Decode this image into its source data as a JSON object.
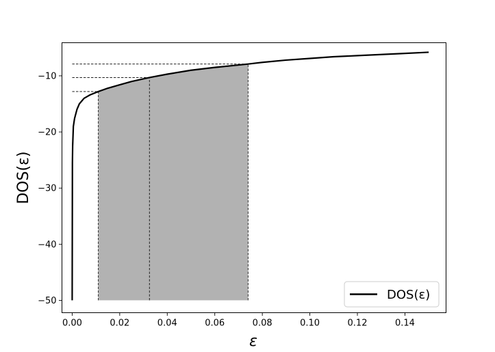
{
  "chart_data": {
    "type": "line",
    "xlabel": "ε",
    "ylabel": "DOS(ε)",
    "xlim": [
      -0.0043,
      0.1573
    ],
    "ylim": [
      -52.2,
      -4.1
    ],
    "xticks": [
      {
        "value": 0.0,
        "label": "0.00"
      },
      {
        "value": 0.02,
        "label": "0.02"
      },
      {
        "value": 0.04,
        "label": "0.04"
      },
      {
        "value": 0.06,
        "label": "0.06"
      },
      {
        "value": 0.08,
        "label": "0.08"
      },
      {
        "value": 0.1,
        "label": "0.10"
      },
      {
        "value": 0.12,
        "label": "0.12"
      },
      {
        "value": 0.14,
        "label": "0.14"
      }
    ],
    "yticks": [
      {
        "value": -50,
        "label": "−50"
      },
      {
        "value": -40,
        "label": "−40"
      },
      {
        "value": -30,
        "label": "−30"
      },
      {
        "value": -20,
        "label": "−20"
      },
      {
        "value": -10,
        "label": "−10"
      }
    ],
    "series": [
      {
        "name": "DOS(ε)",
        "color": "#000000",
        "x": [
          0.0,
          0.0001,
          0.0002,
          0.0005,
          0.001,
          0.002,
          0.003,
          0.005,
          0.0075,
          0.011,
          0.015,
          0.02,
          0.025,
          0.0325,
          0.04,
          0.05,
          0.06,
          0.074,
          0.08,
          0.09,
          0.1,
          0.11,
          0.12,
          0.13,
          0.14,
          0.15
        ],
        "y": [
          -50.0,
          -25.5,
          -22.5,
          -19.0,
          -17.6,
          -16.0,
          -15.0,
          -14.0,
          -13.4,
          -12.8,
          -12.2,
          -11.6,
          -11.0,
          -10.3,
          -9.7,
          -9.0,
          -8.5,
          -7.9,
          -7.6,
          -7.2,
          -6.9,
          -6.6,
          -6.4,
          -6.2,
          -6.0,
          -5.8
        ]
      }
    ],
    "shaded_regions": [
      {
        "x0": 0.011,
        "x1": 0.0325,
        "y_base": -50,
        "color": "#b2b2b2"
      },
      {
        "x0": 0.0325,
        "x1": 0.074,
        "y_base": -50,
        "color": "#b2b2b2"
      }
    ],
    "reference_lines": [
      {
        "x": 0.011,
        "y": -12.8
      },
      {
        "x": 0.0325,
        "y": -10.3
      },
      {
        "x": 0.074,
        "y": -7.9
      }
    ],
    "legend": {
      "position": "lower-right"
    }
  }
}
